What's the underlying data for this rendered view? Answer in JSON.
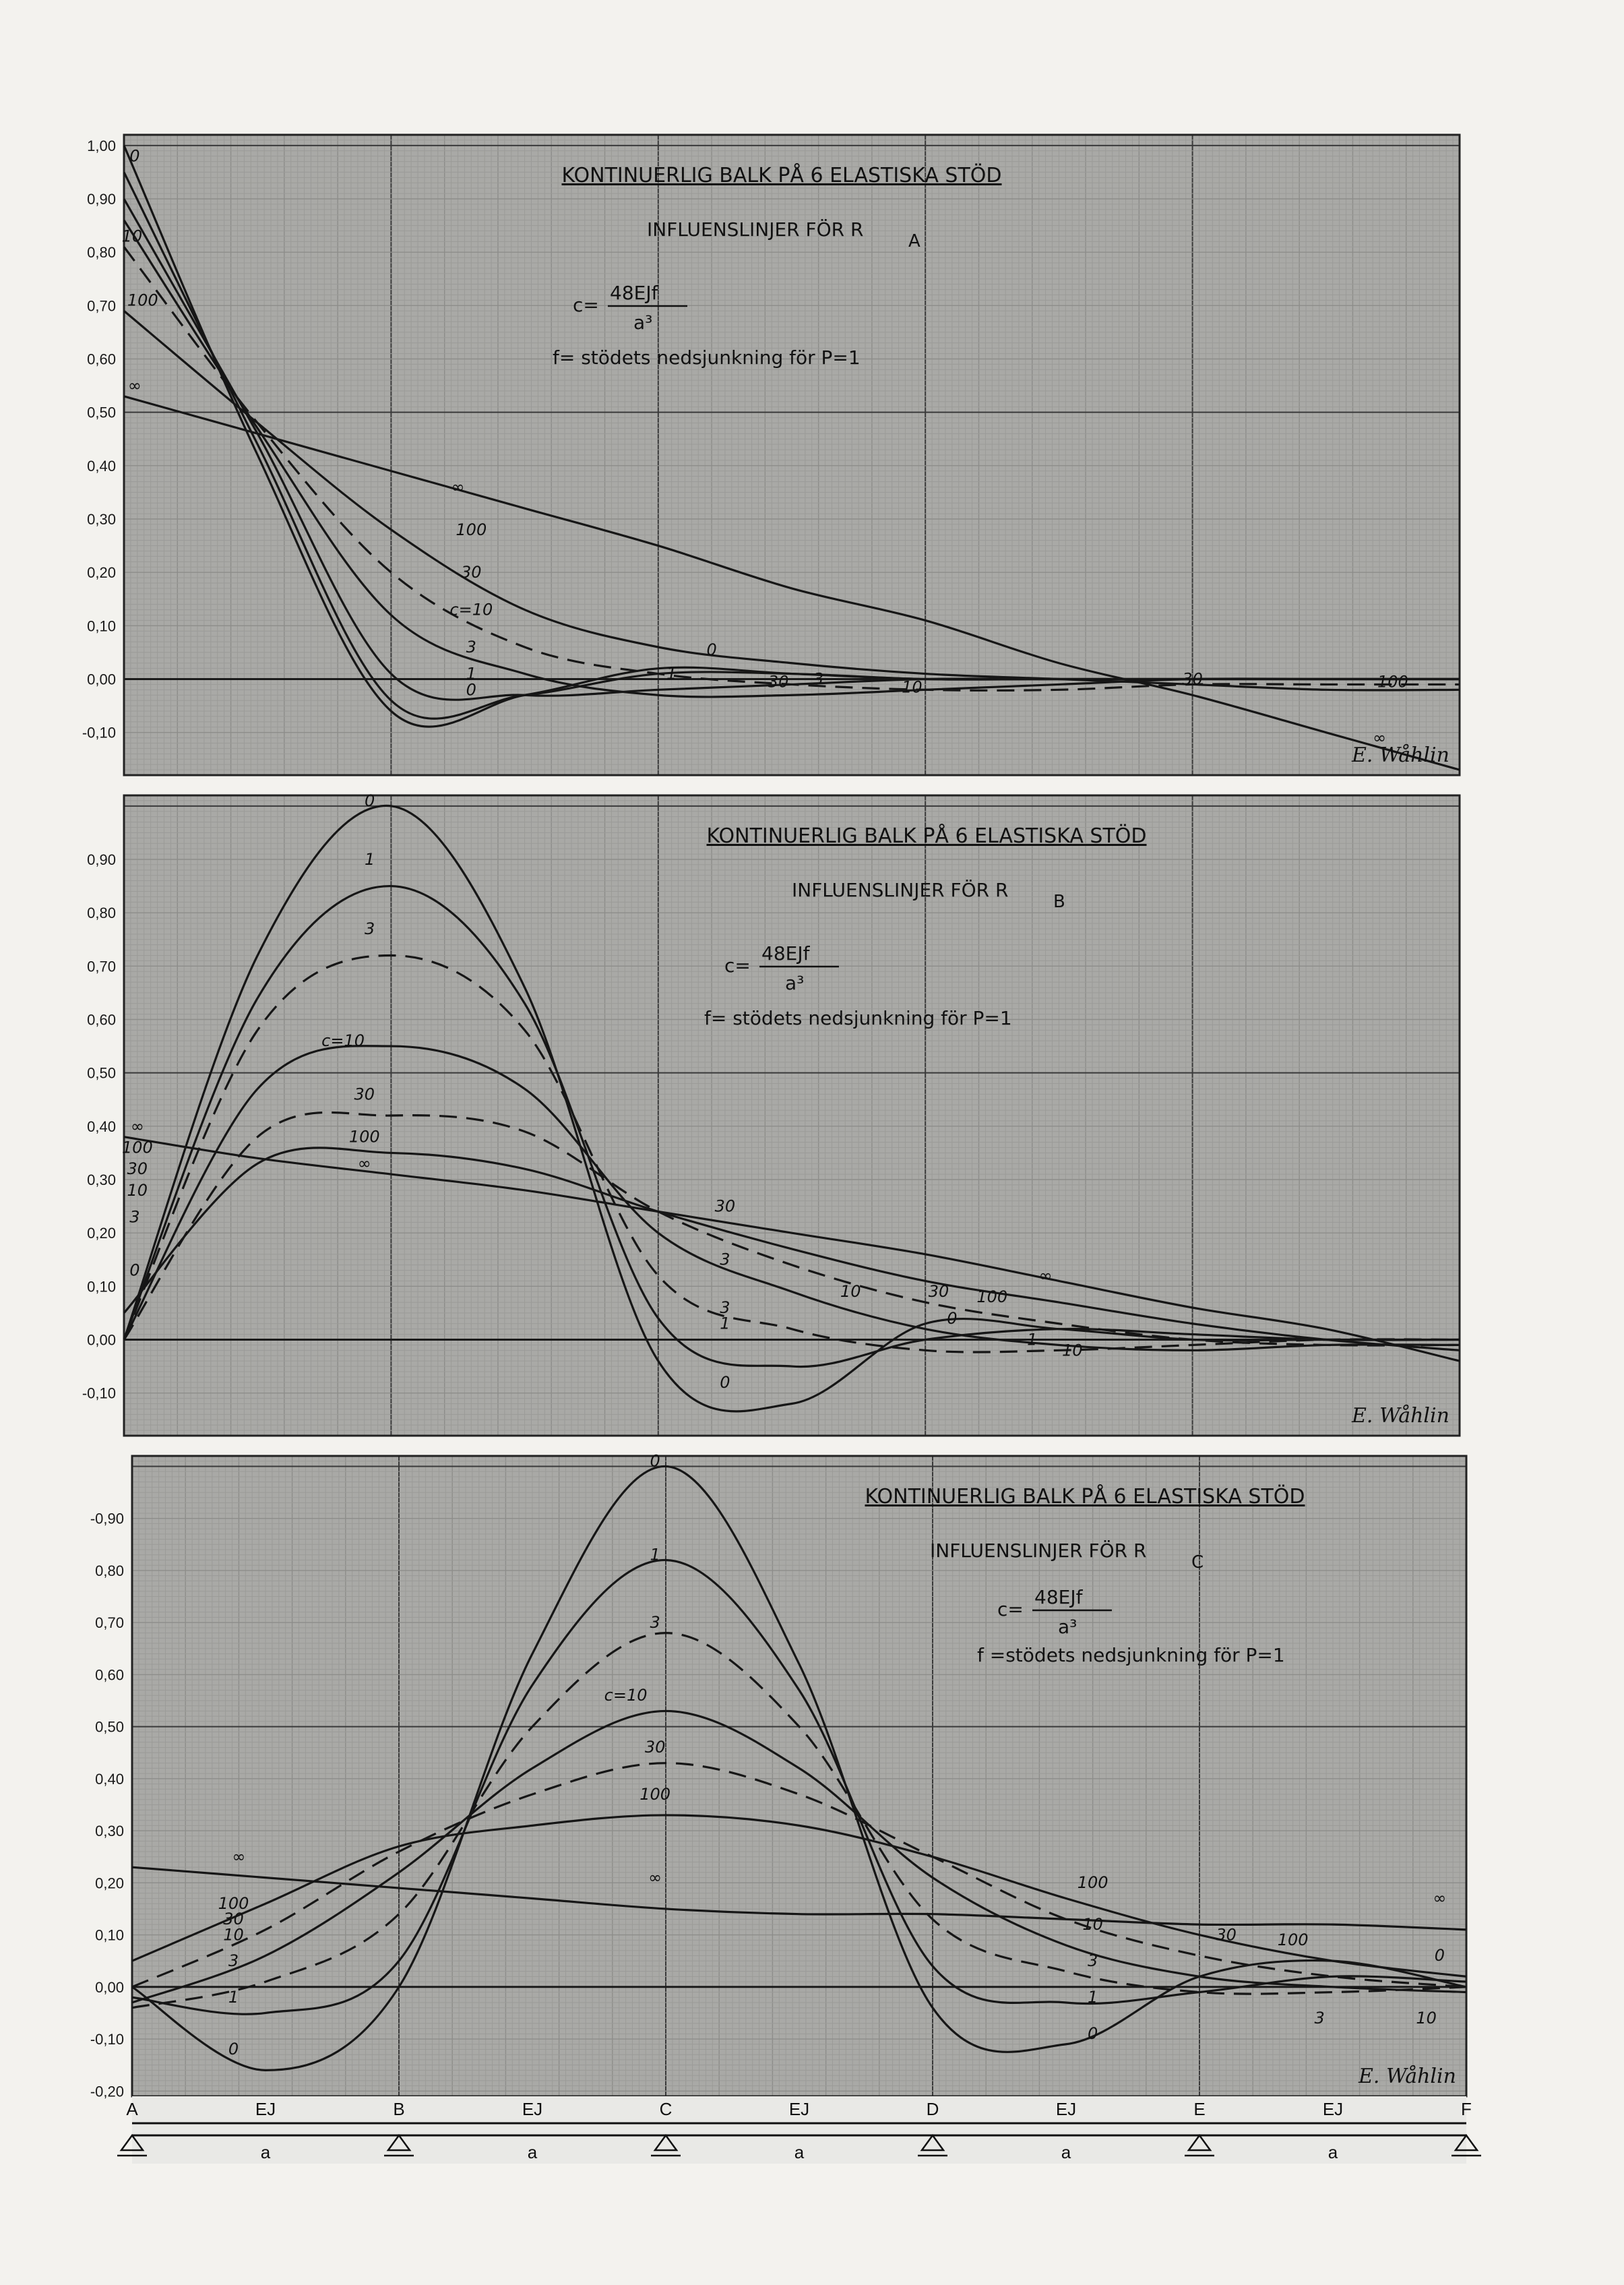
{
  "chart_data": [
    {
      "type": "line",
      "title": "KONTINUERLIG BALK PÅ 6 ELASTISKA STÖD",
      "subtitle": "INFLUENSLINJER FÖR R",
      "subtitle_sub": "A",
      "formula": {
        "lhs": "c=",
        "num": "48EJf",
        "den": "a³"
      },
      "note": "f= stödets nedsjunkning för P=1",
      "signature": "E. Wåhlin",
      "y_ticks": [
        "1,00",
        "0,90",
        "0,80",
        "0,70",
        "0,60",
        "0,50",
        "0,40",
        "0,30",
        "0,20",
        "0,10",
        "0,00",
        "-0,10"
      ],
      "ylim": [
        -0.2,
        1.0
      ],
      "x": [
        0,
        0.5,
        1,
        1.5,
        2,
        2.5,
        3,
        3.5,
        4,
        4.5,
        5
      ],
      "series": [
        {
          "name": "0",
          "dashed": false,
          "values": [
            1.0,
            0.42,
            -0.06,
            -0.03,
            0.02,
            0.01,
            0.0,
            0.0,
            0.0,
            0.0,
            0.0
          ]
        },
        {
          "name": "1",
          "dashed": false,
          "values": [
            0.95,
            0.44,
            -0.04,
            -0.03,
            0.01,
            0.01,
            0.0,
            0.0,
            0.0,
            0.0,
            0.0
          ]
        },
        {
          "name": "3",
          "dashed": false,
          "values": [
            0.9,
            0.46,
            0.01,
            -0.03,
            -0.02,
            -0.01,
            0.0,
            0.0,
            0.0,
            0.0,
            0.0
          ]
        },
        {
          "name": "c=10",
          "dashed": false,
          "values": [
            0.86,
            0.47,
            0.12,
            0.01,
            -0.03,
            -0.03,
            -0.02,
            -0.01,
            0.0,
            0.0,
            0.0
          ]
        },
        {
          "name": "30",
          "dashed": true,
          "values": [
            0.81,
            0.48,
            0.2,
            0.06,
            0.01,
            -0.01,
            -0.02,
            -0.02,
            -0.01,
            -0.01,
            -0.01
          ]
        },
        {
          "name": "100",
          "dashed": false,
          "values": [
            0.69,
            0.48,
            0.28,
            0.13,
            0.06,
            0.03,
            0.01,
            0.0,
            -0.01,
            -0.02,
            -0.02
          ]
        },
        {
          "name": "∞",
          "dashed": false,
          "values": [
            0.53,
            0.46,
            0.39,
            0.32,
            0.25,
            0.17,
            0.11,
            0.03,
            -0.03,
            -0.1,
            -0.17
          ]
        }
      ],
      "labels": [
        "0",
        "10",
        "100",
        "∞",
        "∞",
        "100",
        "30",
        "c=10",
        "3",
        "1",
        "0",
        "0",
        "1",
        "30",
        "3",
        "10",
        "30",
        "100",
        "∞"
      ]
    },
    {
      "type": "line",
      "title": "KONTINUERLIG BALK PÅ 6 ELASTISKA STÖD",
      "subtitle": "INFLUENSLINJER FÖR R",
      "subtitle_sub": "B",
      "formula": {
        "lhs": "c=",
        "num": "48EJf",
        "den": "a³"
      },
      "note": "f= stödets nedsjunkning för P=1",
      "signature": "E. Wåhlin",
      "y_ticks": [
        "0,90",
        "0,80",
        "0,70",
        "0,60",
        "0,50",
        "0,40",
        "0,30",
        "0,20",
        "0,10",
        "0,00",
        "-0,10"
      ],
      "ylim": [
        -0.2,
        1.0
      ],
      "x": [
        0,
        0.5,
        1,
        1.5,
        2,
        2.5,
        3,
        3.5,
        4,
        4.5,
        5
      ],
      "series": [
        {
          "name": "0",
          "dashed": false,
          "values": [
            0.0,
            0.72,
            1.0,
            0.66,
            -0.04,
            -0.12,
            0.03,
            0.02,
            0.0,
            0.0,
            0.0
          ]
        },
        {
          "name": "1",
          "dashed": false,
          "values": [
            0.0,
            0.64,
            0.85,
            0.63,
            0.04,
            -0.05,
            0.0,
            0.02,
            0.01,
            0.0,
            0.0
          ]
        },
        {
          "name": "3",
          "dashed": true,
          "values": [
            0.0,
            0.58,
            0.72,
            0.58,
            0.12,
            0.02,
            -0.02,
            -0.02,
            -0.01,
            0.0,
            0.0
          ]
        },
        {
          "name": "c=10",
          "dashed": false,
          "values": [
            0.0,
            0.47,
            0.55,
            0.47,
            0.2,
            0.09,
            0.02,
            -0.01,
            -0.02,
            -0.01,
            -0.01
          ]
        },
        {
          "name": "30",
          "dashed": true,
          "values": [
            0.0,
            0.38,
            0.42,
            0.39,
            0.24,
            0.14,
            0.07,
            0.03,
            0.0,
            -0.01,
            -0.01
          ]
        },
        {
          "name": "100",
          "dashed": false,
          "values": [
            0.05,
            0.33,
            0.35,
            0.32,
            0.24,
            0.17,
            0.11,
            0.07,
            0.03,
            0.0,
            -0.02
          ]
        },
        {
          "name": "∞",
          "dashed": false,
          "values": [
            0.38,
            0.34,
            0.31,
            0.28,
            0.24,
            0.2,
            0.16,
            0.11,
            0.06,
            0.02,
            -0.04
          ]
        }
      ],
      "labels": [
        "0",
        "1",
        "3",
        "c=10",
        "30",
        "100",
        "∞",
        "∞",
        "100",
        "30",
        "10",
        "3",
        "0",
        "30",
        "3",
        "10",
        "30",
        "100",
        "∞",
        "0",
        "1",
        "3",
        "10",
        "1",
        "0"
      ]
    },
    {
      "type": "line",
      "title": "KONTINUERLIG BALK PÅ 6 ELASTISKA STÖD",
      "subtitle": "INFLUENSLINJER FÖR R",
      "subtitle_sub": "C",
      "formula": {
        "lhs": "c=",
        "num": "48EJf",
        "den": "a³"
      },
      "note": "f =stödets nedsjunkning för P=1",
      "signature": "E. Wåhlin",
      "y_ticks": [
        "-0,90",
        "0,80",
        "0,70",
        "0,60",
        "0,50",
        "0,40",
        "0,30",
        "0,20",
        "0,10",
        "0,00",
        "-0,10",
        "-0,20"
      ],
      "ylim": [
        -0.2,
        1.0
      ],
      "x": [
        0,
        0.5,
        1,
        1.5,
        2,
        2.5,
        3,
        3.5,
        4,
        4.5,
        5
      ],
      "series": [
        {
          "name": "0",
          "dashed": false,
          "values": [
            0.0,
            -0.16,
            0.0,
            0.64,
            1.0,
            0.62,
            -0.04,
            -0.11,
            0.02,
            0.05,
            0.0
          ]
        },
        {
          "name": "1",
          "dashed": false,
          "values": [
            -0.02,
            -0.05,
            0.05,
            0.58,
            0.82,
            0.57,
            0.04,
            -0.03,
            -0.01,
            0.02,
            0.01
          ]
        },
        {
          "name": "3",
          "dashed": true,
          "values": [
            -0.04,
            0.01,
            0.14,
            0.5,
            0.68,
            0.5,
            0.13,
            0.03,
            -0.01,
            -0.01,
            0.0
          ]
        },
        {
          "name": "c=10",
          "dashed": false,
          "values": [
            -0.03,
            0.06,
            0.22,
            0.42,
            0.53,
            0.42,
            0.21,
            0.08,
            0.02,
            0.0,
            -0.01
          ]
        },
        {
          "name": "30",
          "dashed": true,
          "values": [
            0.0,
            0.11,
            0.26,
            0.37,
            0.43,
            0.37,
            0.25,
            0.13,
            0.06,
            0.02,
            0.0
          ]
        },
        {
          "name": "100",
          "dashed": false,
          "values": [
            0.05,
            0.16,
            0.27,
            0.31,
            0.33,
            0.31,
            0.25,
            0.17,
            0.1,
            0.05,
            0.02
          ]
        },
        {
          "name": "∞",
          "dashed": false,
          "values": [
            0.23,
            0.21,
            0.19,
            0.17,
            0.15,
            0.14,
            0.14,
            0.13,
            0.12,
            0.12,
            0.11
          ]
        }
      ],
      "labels": [
        "0",
        "1",
        "3",
        "c=10",
        "30",
        "100",
        "∞",
        "∞",
        "100",
        "30",
        "10",
        "3",
        "1",
        "0",
        "100",
        "10",
        "3",
        "1",
        "0",
        "30",
        "100",
        "3",
        "10",
        "∞",
        "0"
      ]
    }
  ],
  "beam": {
    "supports": [
      "A",
      "B",
      "C",
      "D",
      "E",
      "F"
    ],
    "stiffness": [
      "EJ",
      "EJ",
      "EJ",
      "EJ",
      "EJ"
    ],
    "spans": [
      "a",
      "a",
      "a",
      "a",
      "a"
    ]
  }
}
